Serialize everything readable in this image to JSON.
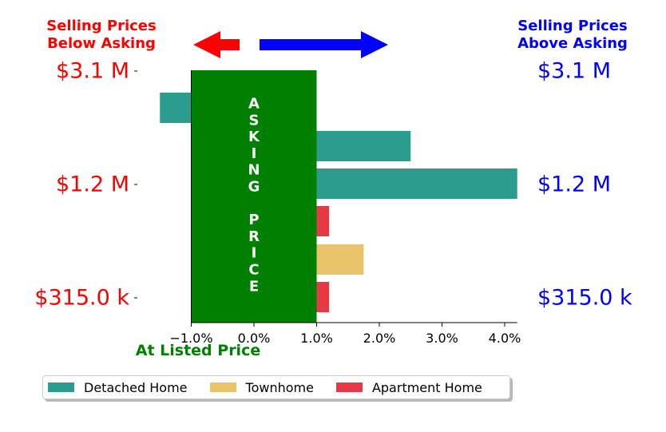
{
  "chart_data": {
    "type": "bar",
    "orientation": "horizontal",
    "xlim": [
      -1.5,
      4.2
    ],
    "x_ticks": [
      -1.0,
      0.0,
      1.0,
      2.0,
      3.0,
      4.0
    ],
    "x_tick_labels": [
      "−1.0%",
      "0.0%",
      "1.0%",
      "2.0%",
      "3.0%",
      "4.0%"
    ],
    "bars": [
      {
        "series": "Detached Home",
        "value": -1.5
      },
      {
        "series": "Detached Home",
        "value": 2.5
      },
      {
        "series": "Detached Home",
        "value": 4.2
      },
      {
        "series": "Apartment Home",
        "value": 1.2
      },
      {
        "series": "Townhome",
        "value": 1.75
      },
      {
        "series": "Apartment Home",
        "value": 1.2
      }
    ],
    "series": [
      {
        "name": "Detached Home",
        "color": "#2a9d8f"
      },
      {
        "name": "Townhome",
        "color": "#e9c46a"
      },
      {
        "name": "Apartment Home",
        "color": "#e63946"
      }
    ],
    "y_tick_labels_left": [
      "$3.1 M",
      "$1.2 M",
      "$315.0 k"
    ],
    "y_tick_labels_right": [
      "$3.1 M",
      "$1.2 M",
      "$315.0 k"
    ],
    "asking_band": {
      "range": [
        -1.0,
        1.0
      ],
      "color": "#008000",
      "text_top": "ASKING",
      "text_bottom": "PRICE"
    },
    "legend_position": "bottom"
  },
  "labels": {
    "below_asking": [
      "Selling Prices",
      "Below Asking"
    ],
    "above_asking": [
      "Selling Prices",
      "Above Asking"
    ],
    "at_listed": "At Listed Price"
  },
  "colors": {
    "below": "#ff0000",
    "above": "#0000ff",
    "at_listed": "#008000"
  }
}
